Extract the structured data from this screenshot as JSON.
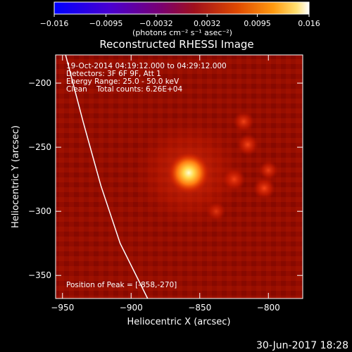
{
  "colorbar": {
    "ticks": [
      "-0.016",
      "-0.0095",
      "-0.0032",
      "0.0032",
      "0.0095",
      "0.016"
    ],
    "tick_values": [
      -0.016,
      -0.0095,
      -0.0032,
      0.0032,
      0.0095,
      0.016
    ],
    "range": [
      -0.016,
      0.016
    ],
    "units": "(photons cm⁻² s⁻¹ asec⁻²)",
    "colors": [
      "#0000ff",
      "#5a00c8",
      "#8a008a",
      "#b01a2a",
      "#e04a00",
      "#ff8a00",
      "#ffd24a",
      "#ffffff"
    ]
  },
  "image": {
    "title": "Reconstructed RHESSI Image",
    "info_lines": [
      "19-Oct-2014 04:19:12.000 to 04:29:12.000",
      "Detectors: 3F 6F 9F, Att 1",
      "Energy Range: 25.0 - 50.0 keV",
      "Clean    Total counts: 6.26E+04"
    ],
    "peak_text": "Position of Peak = [-858,-270]",
    "peak": {
      "x": -858,
      "y": -270
    },
    "secondary_sources": [
      {
        "x": -825,
        "y": -275,
        "level": 0.45
      },
      {
        "x": -818,
        "y": -230,
        "level": 0.35
      },
      {
        "x": -815,
        "y": -248,
        "level": 0.4
      },
      {
        "x": -803,
        "y": -282,
        "level": 0.42
      },
      {
        "x": -800,
        "y": -268,
        "level": 0.3
      },
      {
        "x": -838,
        "y": -300,
        "level": 0.25
      }
    ],
    "limb": [
      [
        -948,
        -177
      ],
      [
        -935,
        -230
      ],
      [
        -922,
        -280
      ],
      [
        -908,
        -325
      ],
      [
        -888,
        -368
      ]
    ]
  },
  "axes": {
    "xlabel": "Heliocentric X (arcsec)",
    "ylabel": "Heliocentric Y (arcsec)",
    "xlim": [
      -955,
      -775
    ],
    "ylim": [
      -368,
      -178
    ],
    "xticks": [
      -950,
      -900,
      -850,
      -800
    ],
    "xtick_labels": [
      "−950",
      "−900",
      "−850",
      "−800"
    ],
    "yticks": [
      -200,
      -250,
      -300,
      -350
    ],
    "ytick_labels": [
      "−200",
      "−250",
      "−300",
      "−350"
    ]
  },
  "footer": {
    "date": "30-Jun-2017 18:28"
  }
}
